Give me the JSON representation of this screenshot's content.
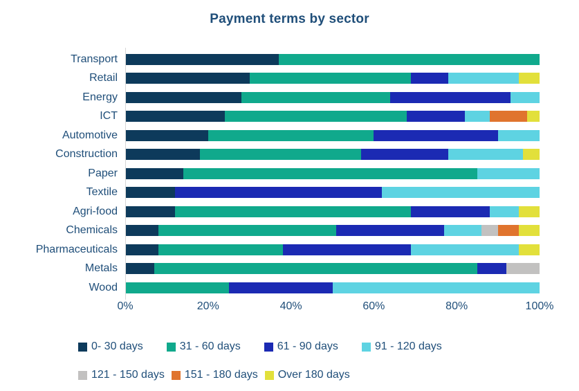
{
  "title": "Payment terms by sector",
  "colors": {
    "text": "#1f4e79",
    "axis_line": "#d6d6d6",
    "background": "#ffffff"
  },
  "chart_data": {
    "type": "bar",
    "orientation": "horizontal",
    "stacked": true,
    "unit": "percent",
    "title": "Payment terms by sector",
    "xlabel": "",
    "ylabel": "",
    "xlim": [
      0,
      100
    ],
    "x_ticks": [
      "0%",
      "20%",
      "40%",
      "60%",
      "80%",
      "100%"
    ],
    "grid": false,
    "legend_position": "bottom",
    "categories": [
      "Transport",
      "Retail",
      "Energy",
      "ICT",
      "Automotive",
      "Construction",
      "Paper",
      "Textile",
      "Agri-food",
      "Chemicals",
      "Pharmaceuticals",
      "Metals",
      "Wood"
    ],
    "series": [
      {
        "name": "0- 30 days",
        "color": "#0d3a5b",
        "values": [
          37,
          30,
          28,
          24,
          20,
          18,
          14,
          12,
          12,
          8,
          8,
          7,
          0
        ]
      },
      {
        "name": "31 - 60 days",
        "color": "#10a98c",
        "values": [
          63,
          39,
          36,
          44,
          40,
          39,
          71,
          0,
          57,
          43,
          30,
          78,
          25
        ]
      },
      {
        "name": "61 - 90 days",
        "color": "#1b2ab3",
        "values": [
          0,
          9,
          29,
          14,
          30,
          21,
          0,
          50,
          19,
          26,
          31,
          7,
          25
        ]
      },
      {
        "name": "91 - 120 days",
        "color": "#5ed3e2",
        "values": [
          0,
          17,
          7,
          6,
          10,
          18,
          15,
          38,
          7,
          9,
          26,
          0,
          50
        ]
      },
      {
        "name": "121 - 150 days",
        "color": "#c2c1c0",
        "values": [
          0,
          0,
          0,
          0,
          0,
          0,
          0,
          0,
          0,
          4,
          0,
          8,
          0
        ]
      },
      {
        "name": "151 - 180 days",
        "color": "#e0742e",
        "values": [
          0,
          0,
          0,
          9,
          0,
          0,
          0,
          0,
          0,
          5,
          0,
          0,
          0
        ]
      },
      {
        "name": "Over 180 days",
        "color": "#e2e03b",
        "values": [
          0,
          5,
          0,
          3,
          0,
          4,
          0,
          0,
          5,
          5,
          5,
          0,
          0
        ]
      }
    ]
  }
}
